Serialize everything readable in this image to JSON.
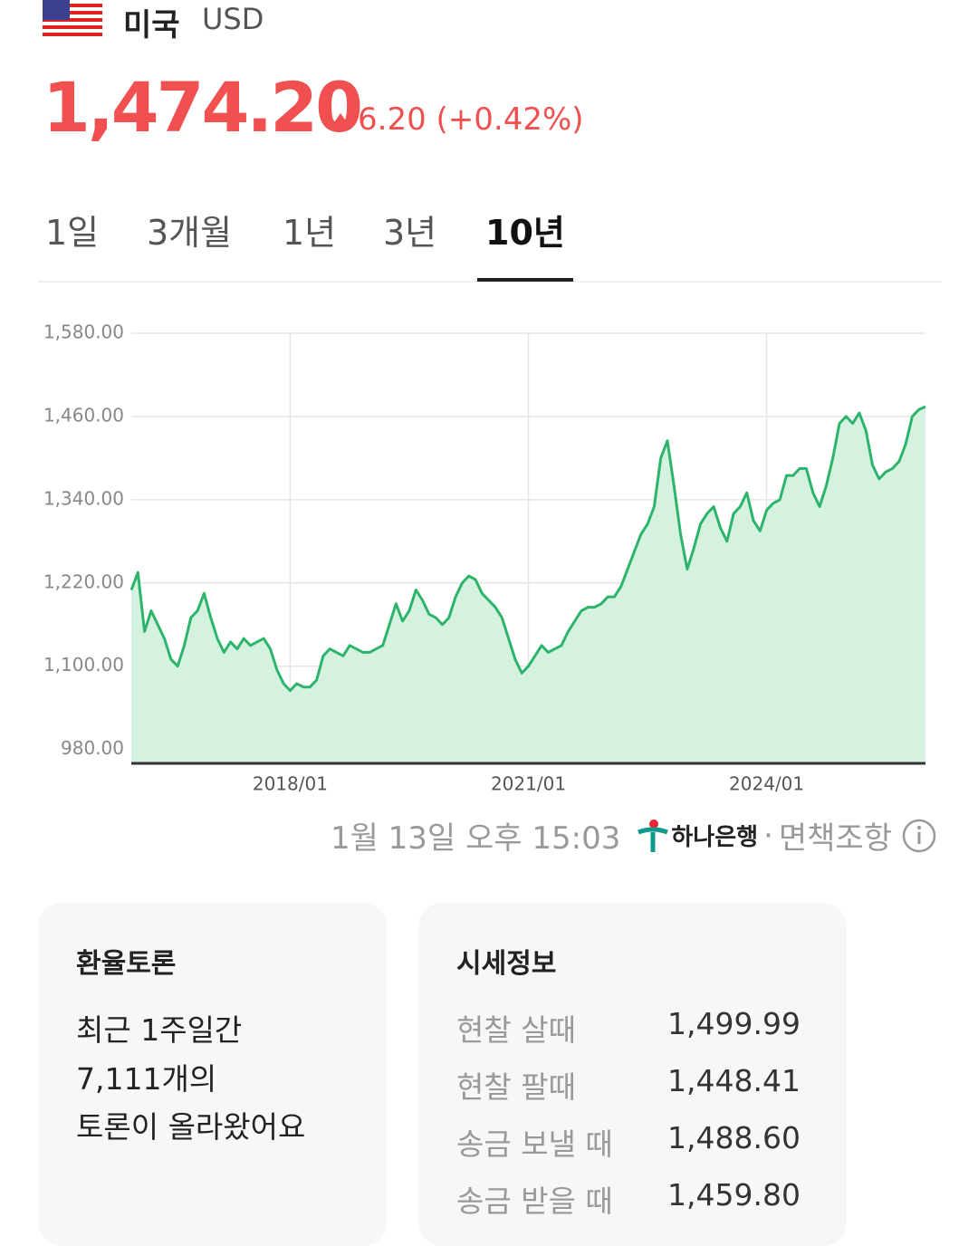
{
  "header": {
    "country": "미국",
    "currency": "USD",
    "rate": "1,474.20",
    "change": "6.20 (+0.42%)"
  },
  "tabs": {
    "items": [
      "1일",
      "3개월",
      "1년",
      "3년",
      "10년"
    ],
    "selected": 4
  },
  "chart_data": {
    "type": "area",
    "x": [
      "2016/01",
      "2016/02",
      "2016/03",
      "2016/04",
      "2016/05",
      "2016/06",
      "2016/07",
      "2016/08",
      "2016/09",
      "2016/10",
      "2016/11",
      "2016/12",
      "2017/01",
      "2017/02",
      "2017/03",
      "2017/04",
      "2017/05",
      "2017/06",
      "2017/07",
      "2017/08",
      "2017/09",
      "2017/10",
      "2017/11",
      "2017/12",
      "2018/01",
      "2018/02",
      "2018/03",
      "2018/04",
      "2018/05",
      "2018/06",
      "2018/07",
      "2018/08",
      "2018/09",
      "2018/10",
      "2018/11",
      "2018/12",
      "2019/01",
      "2019/02",
      "2019/03",
      "2019/04",
      "2019/05",
      "2019/06",
      "2019/07",
      "2019/08",
      "2019/09",
      "2019/10",
      "2019/11",
      "2019/12",
      "2020/01",
      "2020/02",
      "2020/03",
      "2020/04",
      "2020/05",
      "2020/06",
      "2020/07",
      "2020/08",
      "2020/09",
      "2020/10",
      "2020/11",
      "2020/12",
      "2021/01",
      "2021/02",
      "2021/03",
      "2021/04",
      "2021/05",
      "2021/06",
      "2021/07",
      "2021/08",
      "2021/09",
      "2021/10",
      "2021/11",
      "2021/12",
      "2022/01",
      "2022/02",
      "2022/03",
      "2022/04",
      "2022/05",
      "2022/06",
      "2022/07",
      "2022/08",
      "2022/09",
      "2022/10",
      "2022/11",
      "2022/12",
      "2023/01",
      "2023/02",
      "2023/03",
      "2023/04",
      "2023/05",
      "2023/06",
      "2023/07",
      "2023/08",
      "2023/09",
      "2023/10",
      "2023/11",
      "2023/12",
      "2024/01",
      "2024/02",
      "2024/03",
      "2024/04",
      "2024/05",
      "2024/06",
      "2024/07",
      "2024/08",
      "2024/09",
      "2024/10",
      "2024/11",
      "2024/12",
      "2025/01",
      "2025/02",
      "2025/03",
      "2025/04",
      "2025/05",
      "2025/06",
      "2025/07",
      "2025/08",
      "2025/09",
      "2025/10",
      "2025/11",
      "2025/12",
      "2026/01"
    ],
    "series": [
      {
        "name": "USD",
        "color": "#2db46b",
        "fill": "#d5f1e0",
        "values": [
          1210,
          1235,
          1150,
          1180,
          1160,
          1140,
          1110,
          1100,
          1130,
          1170,
          1180,
          1205,
          1170,
          1140,
          1120,
          1135,
          1125,
          1140,
          1130,
          1135,
          1140,
          1125,
          1095,
          1075,
          1065,
          1075,
          1070,
          1070,
          1080,
          1115,
          1125,
          1120,
          1115,
          1130,
          1125,
          1120,
          1120,
          1125,
          1130,
          1160,
          1190,
          1165,
          1180,
          1210,
          1195,
          1175,
          1170,
          1160,
          1170,
          1200,
          1220,
          1230,
          1225,
          1205,
          1195,
          1185,
          1170,
          1140,
          1110,
          1090,
          1100,
          1115,
          1130,
          1120,
          1125,
          1130,
          1150,
          1165,
          1180,
          1185,
          1185,
          1190,
          1200,
          1200,
          1215,
          1240,
          1265,
          1290,
          1305,
          1330,
          1400,
          1425,
          1360,
          1290,
          1240,
          1270,
          1305,
          1320,
          1330,
          1300,
          1280,
          1320,
          1330,
          1350,
          1310,
          1295,
          1325,
          1335,
          1340,
          1375,
          1375,
          1385,
          1385,
          1350,
          1330,
          1360,
          1400,
          1450,
          1460,
          1450,
          1465,
          1440,
          1390,
          1370,
          1380,
          1385,
          1395,
          1420,
          1460,
          1470,
          1474.2
        ]
      }
    ],
    "ylim": [
      960,
      1580
    ],
    "yticks": [
      {
        "value": 980,
        "label": "980.00"
      },
      {
        "value": 1100,
        "label": "1,100.00"
      },
      {
        "value": 1220,
        "label": "1,220.00"
      },
      {
        "value": 1340,
        "label": "1,340.00"
      },
      {
        "value": 1460,
        "label": "1,460.00"
      },
      {
        "value": 1580,
        "label": "1,580.00"
      }
    ],
    "xticks": [
      "2018/01",
      "2021/01",
      "2024/01"
    ],
    "grid": true
  },
  "footer": {
    "time": "1월 13일 오후 15:03",
    "source": "하나은행",
    "separator": "·",
    "disclaimer": "면책조항"
  },
  "cards": [
    {
      "title": "환율토론",
      "lines": [
        "최근 1주일간",
        "7,111개의",
        "토론이 올라왔어요"
      ]
    },
    {
      "title": "시세정보",
      "rows": [
        [
          "현찰 살때",
          "1,499.99"
        ],
        [
          "현찰 팔때",
          "1,448.41"
        ],
        [
          "송금 보낼 때",
          "1,488.60"
        ],
        [
          "송금 받을 때",
          "1,459.80"
        ]
      ]
    }
  ]
}
